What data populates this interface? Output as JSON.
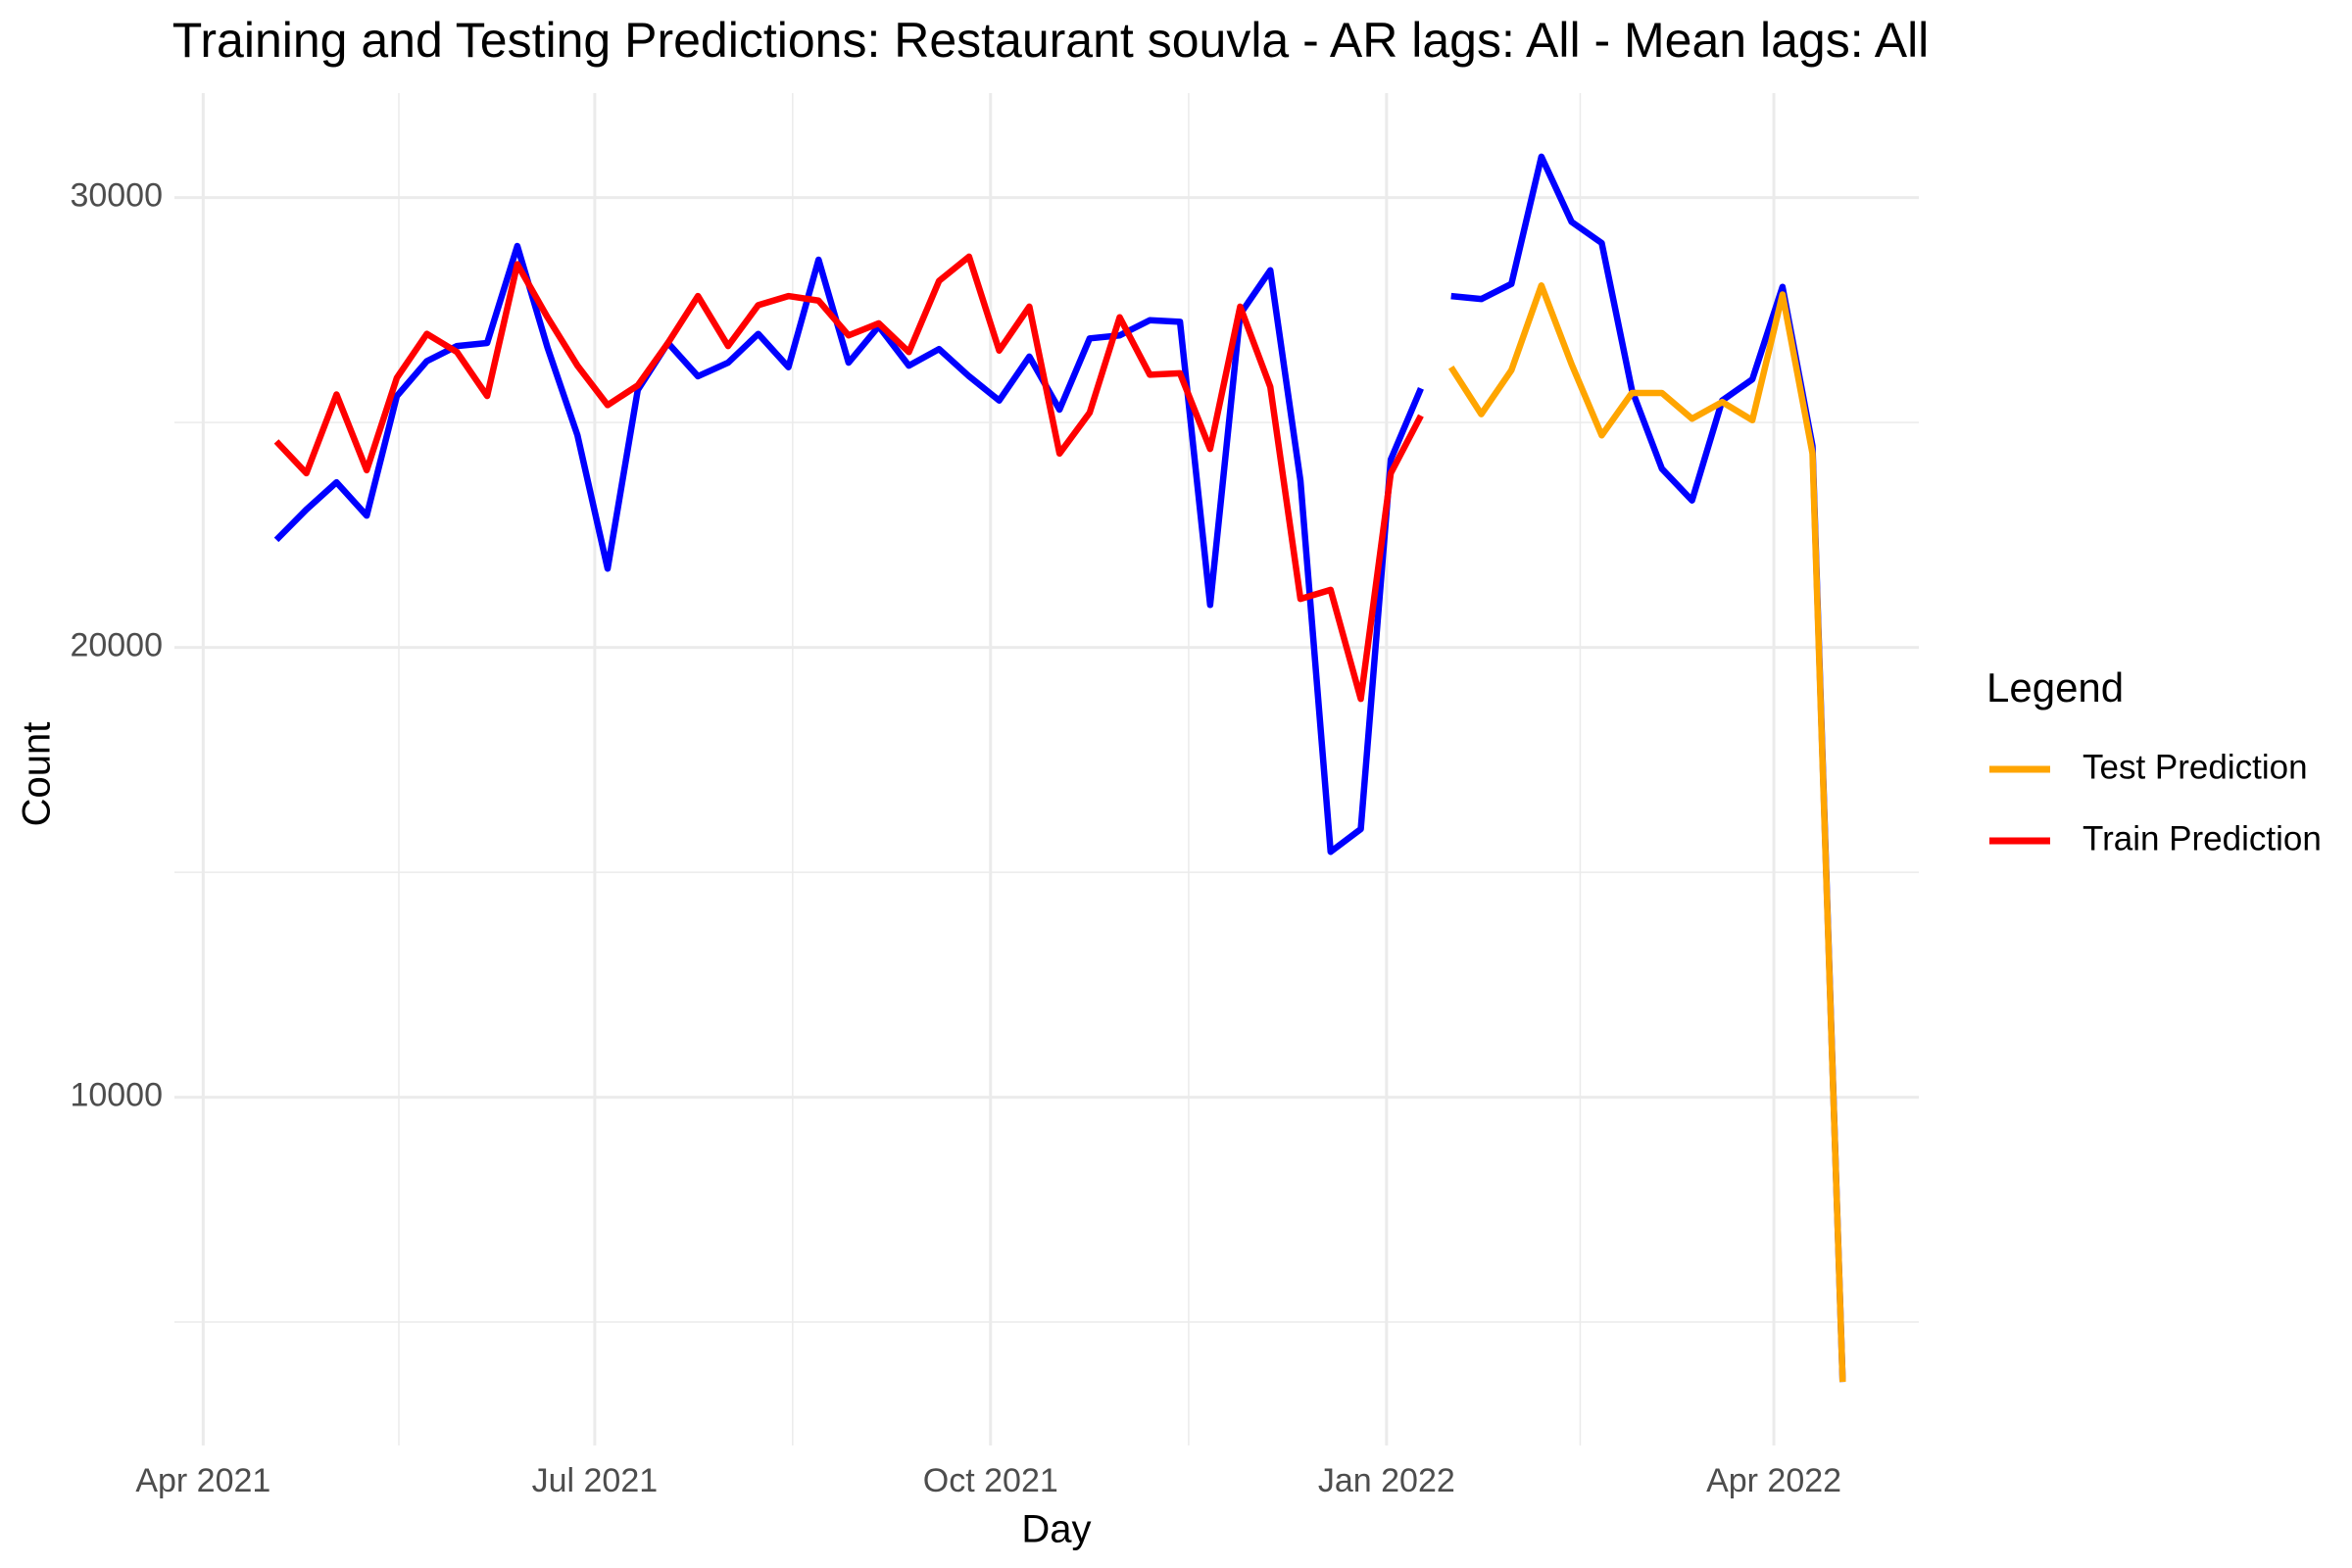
{
  "chart_data": {
    "type": "line",
    "title": "Training and Testing Predictions: Restaurant souvla - AR lags: All - Mean lags: All",
    "x_label": "Day",
    "y_label": "Count",
    "legend_title": "Legend",
    "legend": "right",
    "grid": true,
    "x": [
      2021.2932,
      2021.3123,
      2021.3315,
      2021.3507,
      2021.3699,
      2021.389,
      2021.4082,
      2021.4274,
      2021.4466,
      2021.4658,
      2021.4849,
      2021.5041,
      2021.5233,
      2021.5425,
      2021.5616,
      2021.5808,
      2021.6,
      2021.6192,
      2021.6384,
      2021.6575,
      2021.6767,
      2021.6959,
      2021.7151,
      2021.7342,
      2021.7534,
      2021.7726,
      2021.7918,
      2021.811,
      2021.8301,
      2021.8493,
      2021.8685,
      2021.8877,
      2021.9068,
      2021.926,
      2021.9452,
      2021.9644,
      2021.9836,
      2022.0027,
      2022.0219,
      2022.0411,
      2022.0603,
      2022.0795,
      2022.0986,
      2022.1178,
      2022.137,
      2022.1562,
      2022.1753,
      2022.1945,
      2022.2137,
      2022.2329,
      2022.2521,
      2022.2712,
      2022.2904
    ],
    "series": [
      {
        "color": "#0000ff",
        "values": [
          22390,
          23064,
          23670,
          22929,
          25589,
          26364,
          26700,
          26768,
          28923,
          26667,
          24714,
          21751,
          25724,
          26768,
          26027,
          26330,
          26970,
          26229,
          28620,
          26330,
          27138,
          26263,
          26633,
          26027,
          25488,
          26465,
          25286,
          26869,
          26936,
          27273,
          27239,
          20943,
          27407,
          28384,
          23704,
          15455,
          15960,
          24175,
          25758,
          null,
          null,
          null,
          null,
          null,
          null,
          null,
          null,
          null,
          null,
          null,
          null,
          null,
          null
        ]
      },
      {
        "color": "#0000ff",
        "values": [
          null,
          null,
          null,
          null,
          null,
          null,
          null,
          null,
          null,
          null,
          null,
          null,
          null,
          null,
          null,
          null,
          null,
          null,
          null,
          null,
          null,
          null,
          null,
          null,
          null,
          null,
          null,
          null,
          null,
          null,
          null,
          null,
          null,
          null,
          null,
          null,
          null,
          null,
          null,
          27811,
          27744,
          28081,
          30909,
          29461,
          28990,
          25724,
          23973,
          23266,
          25488,
          25960,
          28014,
          24478,
          3670
        ]
      },
      {
        "name": "Test Prediction",
        "color": "#ffa500",
        "values": [
          null,
          null,
          null,
          null,
          null,
          null,
          null,
          null,
          null,
          null,
          null,
          null,
          null,
          null,
          null,
          null,
          null,
          null,
          null,
          null,
          null,
          null,
          null,
          null,
          null,
          null,
          null,
          null,
          null,
          null,
          null,
          null,
          null,
          null,
          null,
          null,
          null,
          null,
          null,
          26229,
          25185,
          26162,
          28047,
          26296,
          24714,
          25657,
          25657,
          25084,
          25455,
          25051,
          27845,
          24310,
          3670
        ]
      },
      {
        "name": "Train Prediction",
        "color": "#ff0000",
        "values": [
          24579,
          23872,
          25623,
          23939,
          25993,
          26970,
          26566,
          25589,
          28519,
          27340,
          26263,
          25387,
          25825,
          26768,
          27811,
          26700,
          27609,
          27811,
          27710,
          26936,
          27205,
          26566,
          28148,
          28687,
          26599,
          27576,
          24310,
          25219,
          27340,
          26061,
          26094,
          24411,
          27576,
          25791,
          21078,
          21280,
          18855,
          23872,
          25152,
          null,
          null,
          null,
          null,
          null,
          null,
          null,
          null,
          null,
          null,
          null,
          null,
          null,
          null
        ]
      }
    ],
    "xlim": [
      2021.2283,
      2022.3389
    ],
    "xticks": [
      {
        "value": 2021.2466,
        "label": "Apr 2021"
      },
      {
        "value": 2021.4959,
        "label": "Jul 2021"
      },
      {
        "value": 2021.7479,
        "label": "Oct 2021"
      },
      {
        "value": 2022.0,
        "label": "Jan 2022"
      },
      {
        "value": 2022.2466,
        "label": "Apr 2022"
      }
    ],
    "xminor": [
      2021.3712,
      2021.6219,
      2021.874,
      2022.1233
    ],
    "ylim": [
      2256,
      32323
    ],
    "yticks": [
      10000,
      20000,
      30000
    ],
    "yminor": [
      5000,
      15000,
      25000
    ]
  }
}
